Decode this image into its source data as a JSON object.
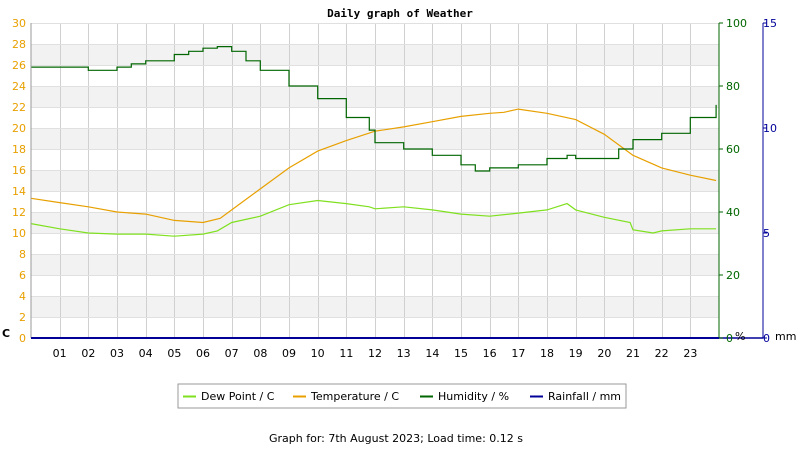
{
  "chart_data": {
    "type": "line",
    "title": "Daily graph of Weather",
    "x": {
      "unit": "hour",
      "range": [
        0,
        24
      ],
      "tick_labels": [
        "01",
        "02",
        "03",
        "04",
        "05",
        "06",
        "07",
        "08",
        "09",
        "10",
        "11",
        "12",
        "13",
        "14",
        "15",
        "16",
        "17",
        "18",
        "19",
        "20",
        "21",
        "22",
        "23"
      ]
    },
    "axes": {
      "celsius": {
        "label": "C",
        "range": [
          0,
          30
        ],
        "ticks": [
          0,
          2,
          4,
          6,
          8,
          10,
          12,
          14,
          16,
          18,
          20,
          22,
          24,
          26,
          28,
          30
        ],
        "color": "#e8a000"
      },
      "percent": {
        "label": "%",
        "range": [
          0,
          100
        ],
        "ticks": [
          0,
          20,
          40,
          60,
          80,
          100
        ],
        "color": "#006600"
      },
      "mm": {
        "label": "mm",
        "range": [
          0,
          15
        ],
        "ticks": [
          0,
          5,
          10,
          15
        ],
        "color": "#000099"
      }
    },
    "grid": true,
    "legend_position": "bottom",
    "series": [
      {
        "name": "Dew Point / C",
        "axis": "celsius",
        "color": "#7fe01f",
        "points": [
          [
            0,
            10.9
          ],
          [
            1,
            10.4
          ],
          [
            2,
            10.0
          ],
          [
            3,
            9.9
          ],
          [
            4,
            9.9
          ],
          [
            5,
            9.7
          ],
          [
            6,
            9.9
          ],
          [
            6.5,
            10.2
          ],
          [
            7,
            11.0
          ],
          [
            8,
            11.6
          ],
          [
            9,
            12.7
          ],
          [
            10,
            13.1
          ],
          [
            11,
            12.8
          ],
          [
            11.8,
            12.5
          ],
          [
            12,
            12.3
          ],
          [
            13,
            12.5
          ],
          [
            14,
            12.2
          ],
          [
            15,
            11.8
          ],
          [
            16,
            11.6
          ],
          [
            17,
            11.9
          ],
          [
            18,
            12.2
          ],
          [
            18.7,
            12.8
          ],
          [
            19,
            12.2
          ],
          [
            20,
            11.5
          ],
          [
            20.9,
            11.0
          ],
          [
            21,
            10.3
          ],
          [
            21.7,
            10.0
          ],
          [
            22,
            10.2
          ],
          [
            23,
            10.4
          ],
          [
            23.9,
            10.4
          ]
        ]
      },
      {
        "name": "Temperature / C",
        "axis": "celsius",
        "color": "#e8a000",
        "points": [
          [
            0,
            13.3
          ],
          [
            1,
            12.9
          ],
          [
            2,
            12.5
          ],
          [
            3,
            12.0
          ],
          [
            4,
            11.8
          ],
          [
            5,
            11.2
          ],
          [
            6,
            11.0
          ],
          [
            6.6,
            11.4
          ],
          [
            7,
            12.2
          ],
          [
            8,
            14.2
          ],
          [
            9,
            16.2
          ],
          [
            10,
            17.8
          ],
          [
            11,
            18.8
          ],
          [
            12,
            19.7
          ],
          [
            13,
            20.1
          ],
          [
            14,
            20.6
          ],
          [
            15,
            21.1
          ],
          [
            16,
            21.4
          ],
          [
            16.5,
            21.5
          ],
          [
            17,
            21.8
          ],
          [
            18,
            21.4
          ],
          [
            19,
            20.8
          ],
          [
            20,
            19.4
          ],
          [
            21,
            17.4
          ],
          [
            22,
            16.2
          ],
          [
            23,
            15.5
          ],
          [
            23.9,
            15.0
          ]
        ]
      },
      {
        "name": "Humidity / %",
        "axis": "percent",
        "color": "#006600",
        "points": [
          [
            0,
            86
          ],
          [
            1,
            86
          ],
          [
            2,
            85
          ],
          [
            3,
            86
          ],
          [
            3.5,
            87
          ],
          [
            4,
            88
          ],
          [
            5,
            90
          ],
          [
            5.5,
            91
          ],
          [
            6,
            92
          ],
          [
            6.5,
            92.5
          ],
          [
            6.9,
            92.5
          ],
          [
            7,
            91
          ],
          [
            7.5,
            88
          ],
          [
            8,
            85
          ],
          [
            9,
            80
          ],
          [
            10,
            76
          ],
          [
            11,
            70
          ],
          [
            11.8,
            66
          ],
          [
            12,
            62
          ],
          [
            13,
            60
          ],
          [
            14,
            58
          ],
          [
            15,
            55
          ],
          [
            15.5,
            53
          ],
          [
            16,
            54
          ],
          [
            17,
            55
          ],
          [
            18,
            57
          ],
          [
            18.7,
            58
          ],
          [
            19,
            57
          ],
          [
            20,
            57
          ],
          [
            20.5,
            60
          ],
          [
            21,
            63
          ],
          [
            22,
            65
          ],
          [
            23,
            70
          ],
          [
            23.9,
            74
          ]
        ]
      },
      {
        "name": "Rainfall / mm",
        "axis": "mm",
        "color": "#000099",
        "points": [
          [
            0,
            0
          ],
          [
            24,
            0
          ]
        ]
      }
    ]
  },
  "footer": "Graph for: 7th August 2023; Load time: 0.12 s"
}
